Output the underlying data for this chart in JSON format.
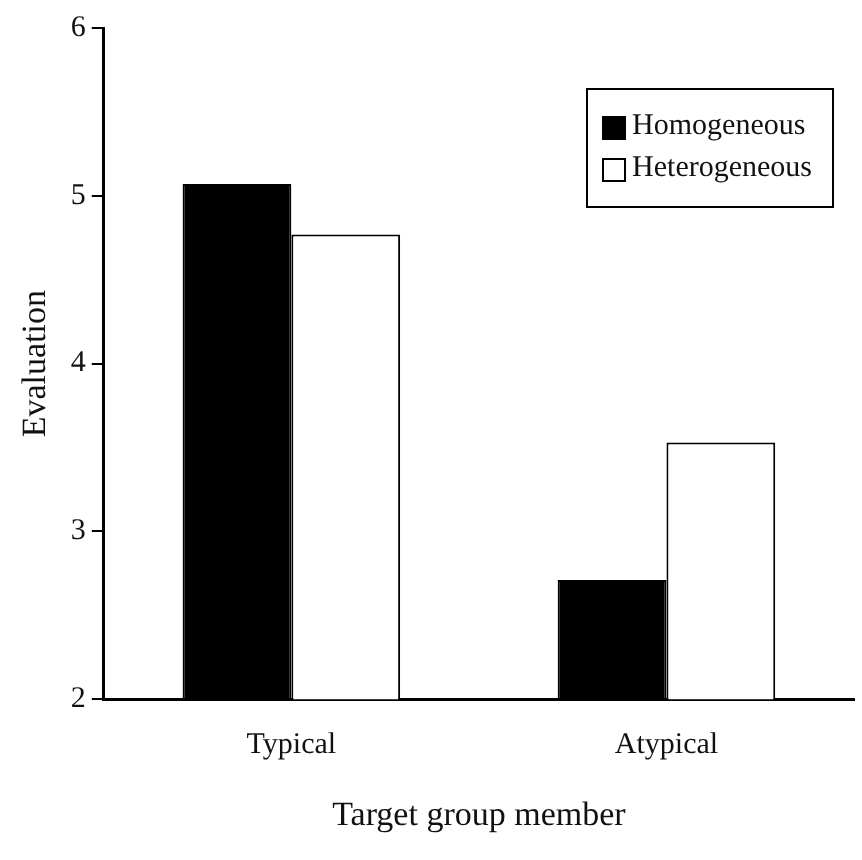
{
  "chart_data": {
    "type": "bar",
    "xlabel": "Target group member",
    "ylabel": "Evaluation",
    "categories": [
      "Typical",
      "Atypical"
    ],
    "series": [
      {
        "name": "Homogeneous",
        "color": "#000000",
        "values": [
          5.07,
          2.71
        ]
      },
      {
        "name": "Heterogeneous",
        "color": "#ffffff",
        "values": [
          4.77,
          3.53
        ]
      }
    ],
    "ylim": [
      2,
      6
    ],
    "yticks": [
      2,
      3,
      4,
      5,
      6
    ],
    "grid": false,
    "legend": "top right"
  }
}
